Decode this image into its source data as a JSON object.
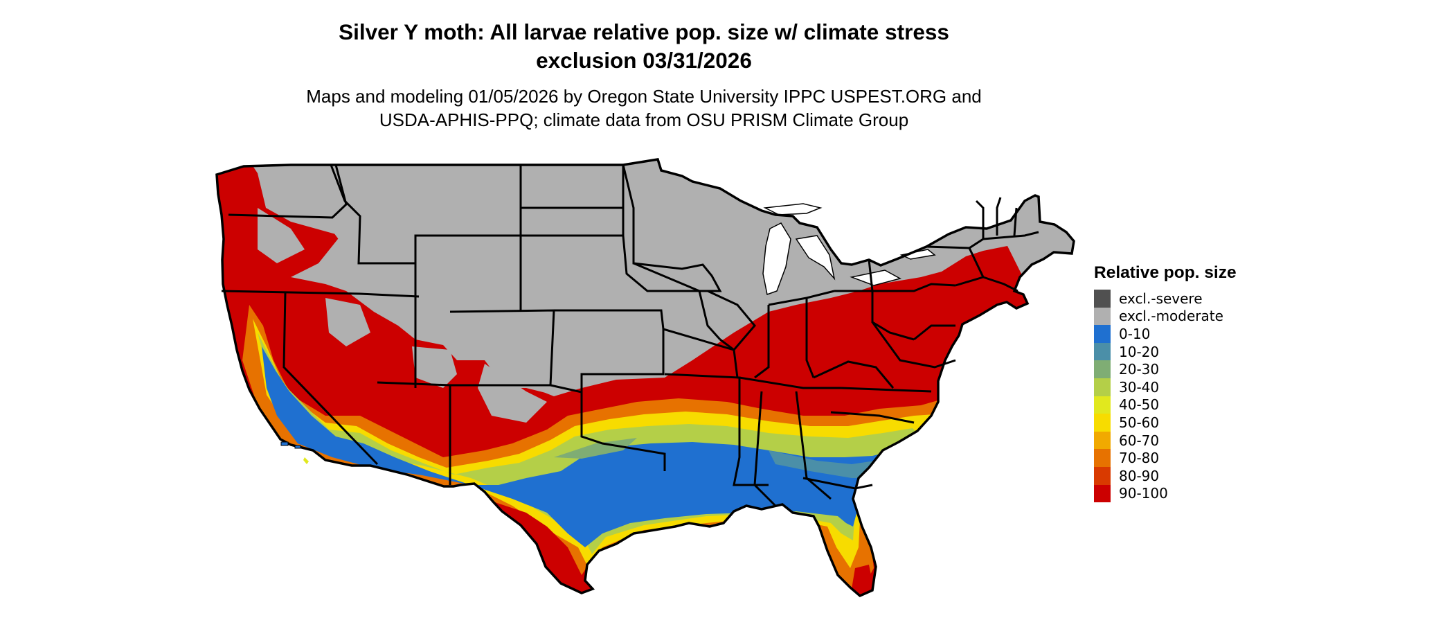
{
  "title_line1": "Silver Y moth: All larvae relative pop. size w/ climate stress",
  "title_line2": "exclusion 03/31/2026",
  "subtitle_line1": "Maps and modeling 01/05/2026 by Oregon State University IPPC USPEST.ORG and",
  "subtitle_line2": "USDA-APHIS-PPQ; climate data from OSU PRISM Climate Group",
  "legend": {
    "title": "Relative pop. size",
    "items": [
      {
        "label": "excl.-severe",
        "color": "#505050"
      },
      {
        "label": "excl.-moderate",
        "color": "#b0b0b0"
      },
      {
        "label": "0-10",
        "color": "#1f70d0"
      },
      {
        "label": "10-20",
        "color": "#4b8fa8"
      },
      {
        "label": "20-30",
        "color": "#7fad74"
      },
      {
        "label": "30-40",
        "color": "#b4cf48"
      },
      {
        "label": "40-50",
        "color": "#e1e81e"
      },
      {
        "label": "50-60",
        "color": "#f7dc00"
      },
      {
        "label": "60-70",
        "color": "#f1a900"
      },
      {
        "label": "70-80",
        "color": "#e77200"
      },
      {
        "label": "80-90",
        "color": "#d93a00"
      },
      {
        "label": "90-100",
        "color": "#cc0000"
      }
    ]
  }
}
